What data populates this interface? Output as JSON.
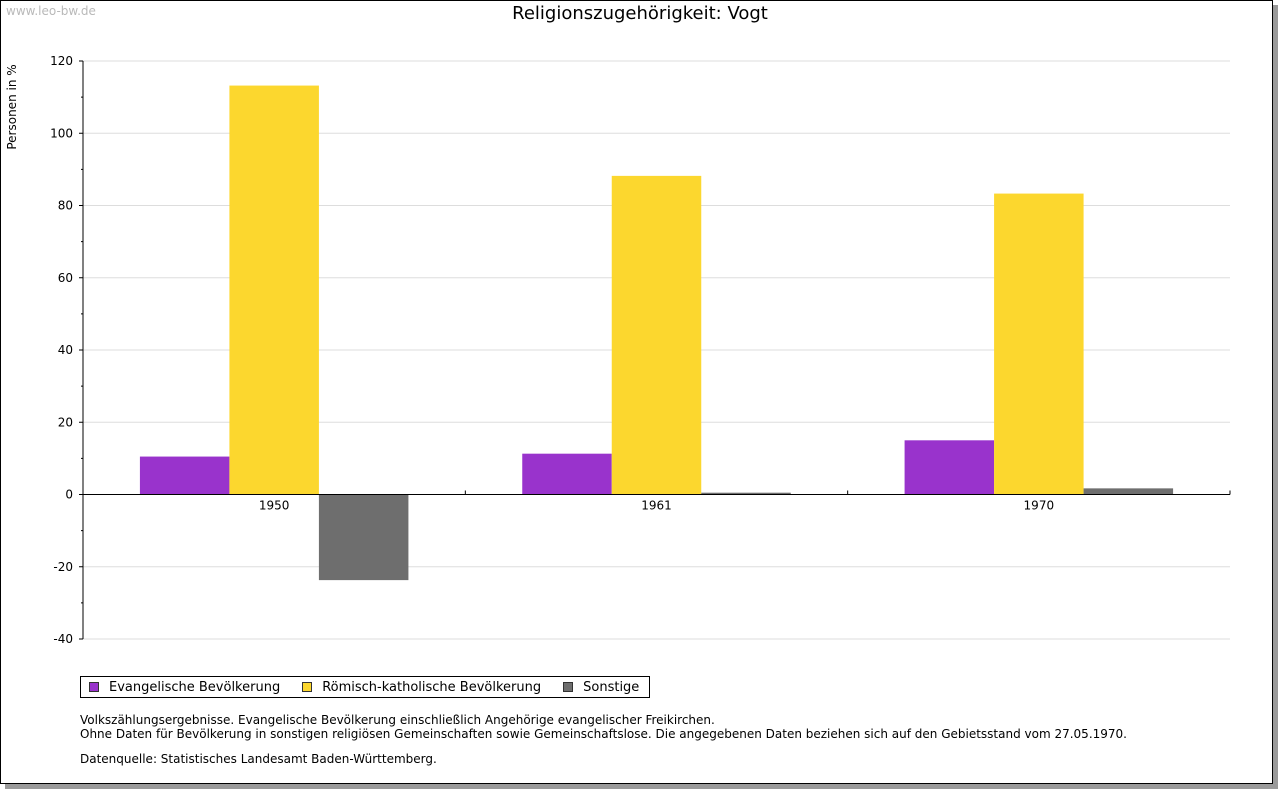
{
  "watermark": "www.leo-bw.de",
  "chart_data": {
    "type": "bar",
    "title": "Religionszugehörigkeit: Vogt",
    "xlabel": "",
    "ylabel": "Personen in %",
    "categories": [
      "1950",
      "1961",
      "1970"
    ],
    "series": [
      {
        "name": "Evangelische Bevölkerung",
        "color": "#9933cc",
        "values": [
          10.5,
          11.3,
          15.0
        ]
      },
      {
        "name": "Römisch-katholische Bevölkerung",
        "color": "#fcd72e",
        "values": [
          113.2,
          88.2,
          83.3
        ]
      },
      {
        "name": "Sonstige",
        "color": "#6e6e6e",
        "values": [
          -23.7,
          0.5,
          1.7
        ]
      }
    ],
    "ylim": [
      -40,
      120
    ],
    "yticks": [
      -40,
      -20,
      0,
      20,
      40,
      60,
      80,
      100,
      120
    ],
    "grid": true,
    "legend_position": "bottom-left"
  },
  "notes": [
    "Volkszählungsergebnisse. Evangelische Bevölkerung einschließlich Angehörige evangelischer Freikirchen.",
    "Ohne Daten für Bevölkerung in sonstigen religiösen Gemeinschaften sowie Gemeinschaftslose. Die angegebenen Daten beziehen sich auf den Gebietsstand vom 27.05.1970."
  ],
  "source": "Datenquelle: Statistisches Landesamt Baden-Württemberg."
}
